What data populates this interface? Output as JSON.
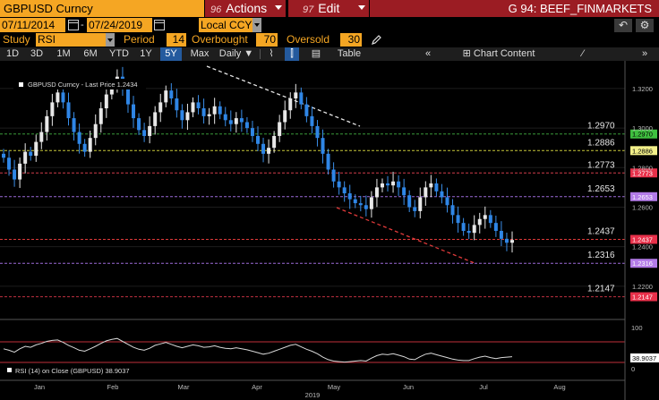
{
  "header": {
    "ticker": "GBPUSD Curncy",
    "actions_num": "96",
    "actions_label": "Actions",
    "edit_num": "97",
    "edit_label": "Edit",
    "page_title": "G 94: BEEF_FINMARKETS"
  },
  "dates": {
    "start": "07/11/2014",
    "end": "07/24/2019",
    "currency": "Local CCY"
  },
  "study": {
    "study_label": "Study",
    "study_value": "RSI",
    "period_label": "Period",
    "period_value": "14",
    "overbought_label": "Overbought",
    "overbought_value": "70",
    "oversold_label": "Oversold",
    "oversold_value": "30"
  },
  "toolbar": {
    "ranges": [
      "1D",
      "3D",
      "1M",
      "6M",
      "YTD",
      "1Y",
      "5Y",
      "Max"
    ],
    "active_range": "5Y",
    "frequency": "Daily",
    "table_label": "Table",
    "chart_content_label": "Chart Content"
  },
  "legend": {
    "price_label": "GBPUSD Curncy - Last Price 1.2434",
    "rsi_label": "RSI (14)  on Close (GBPUSD)  38.9037"
  },
  "chart_data": {
    "type": "candlestick",
    "x_months": [
      "Jan",
      "Feb",
      "Mar",
      "Apr",
      "May",
      "Jun",
      "Jul",
      "Aug"
    ],
    "x_year": "2019",
    "y_ticks": [
      "1.3200",
      "1.3000",
      "1.2800",
      "1.2600",
      "1.2400",
      "1.2200"
    ],
    "ylim": [
      1.205,
      1.334
    ],
    "levels": [
      {
        "value": 1.297,
        "label": "1.2970",
        "color": "#3b9a3b",
        "tag_bg": "#3fbf3f",
        "tag_fg": "#000"
      },
      {
        "value": 1.2886,
        "label": "1.2886",
        "color": "#c8c83a",
        "tag_bg": "#f3f08a",
        "tag_fg": "#000"
      },
      {
        "value": 1.2773,
        "label": "1.2773",
        "color": "#d23c4a",
        "tag_bg": "#e8304a",
        "tag_fg": "#fff"
      },
      {
        "value": 1.2653,
        "label": "1.2653",
        "color": "#9b6ad8",
        "tag_bg": "#b37be8",
        "tag_fg": "#fff"
      },
      {
        "value": 1.2437,
        "label": "1.2437",
        "color": "#e03a3a",
        "tag_bg": "#e8304a",
        "tag_fg": "#fff"
      },
      {
        "value": 1.2316,
        "label": "1.2316",
        "color": "#9b6ad8",
        "tag_bg": "#b37be8",
        "tag_fg": "#fff"
      },
      {
        "value": 1.2147,
        "label": "1.2147",
        "color": "#c03040",
        "tag_bg": "#e8304a",
        "tag_fg": "#fff"
      }
    ],
    "series_close": [
      1.285,
      1.279,
      1.274,
      1.282,
      1.288,
      1.286,
      1.293,
      1.298,
      1.306,
      1.313,
      1.318,
      1.313,
      1.305,
      1.298,
      1.292,
      1.288,
      1.295,
      1.302,
      1.31,
      1.317,
      1.321,
      1.326,
      1.32,
      1.312,
      1.305,
      1.299,
      1.296,
      1.301,
      1.308,
      1.313,
      1.319,
      1.315,
      1.309,
      1.304,
      1.308,
      1.313,
      1.31,
      1.306,
      1.307,
      1.311,
      1.307,
      1.304,
      1.302,
      1.305,
      1.303,
      1.3,
      1.296,
      1.292,
      1.287,
      1.29,
      1.296,
      1.303,
      1.309,
      1.315,
      1.318,
      1.312,
      1.306,
      1.301,
      1.295,
      1.287,
      1.279,
      1.273,
      1.27,
      1.267,
      1.264,
      1.262,
      1.261,
      1.259,
      1.265,
      1.27,
      1.272,
      1.271,
      1.273,
      1.27,
      1.266,
      1.26,
      1.258,
      1.265,
      1.27,
      1.272,
      1.268,
      1.265,
      1.261,
      1.256,
      1.252,
      1.248,
      1.247,
      1.251,
      1.254,
      1.256,
      1.252,
      1.248,
      1.244,
      1.242,
      1.2434
    ],
    "rsi": [
      55,
      52,
      48,
      55,
      60,
      58,
      63,
      66,
      70,
      72,
      73,
      68,
      62,
      57,
      52,
      50,
      55,
      60,
      66,
      71,
      74,
      76,
      70,
      64,
      58,
      54,
      52,
      56,
      62,
      65,
      68,
      64,
      60,
      57,
      60,
      63,
      61,
      58,
      59,
      61,
      58,
      56,
      55,
      57,
      55,
      53,
      50,
      47,
      44,
      46,
      50,
      54,
      58,
      62,
      64,
      59,
      54,
      50,
      45,
      38,
      33,
      30,
      29,
      28,
      29,
      30,
      31,
      30,
      36,
      41,
      44,
      43,
      45,
      42,
      39,
      34,
      33,
      39,
      44,
      46,
      43,
      40,
      37,
      34,
      32,
      31,
      31,
      35,
      38,
      40,
      37,
      35,
      37,
      38,
      38.9
    ],
    "rsi_ticks": [
      "100",
      "0"
    ],
    "rsi_last": "38.9037"
  }
}
